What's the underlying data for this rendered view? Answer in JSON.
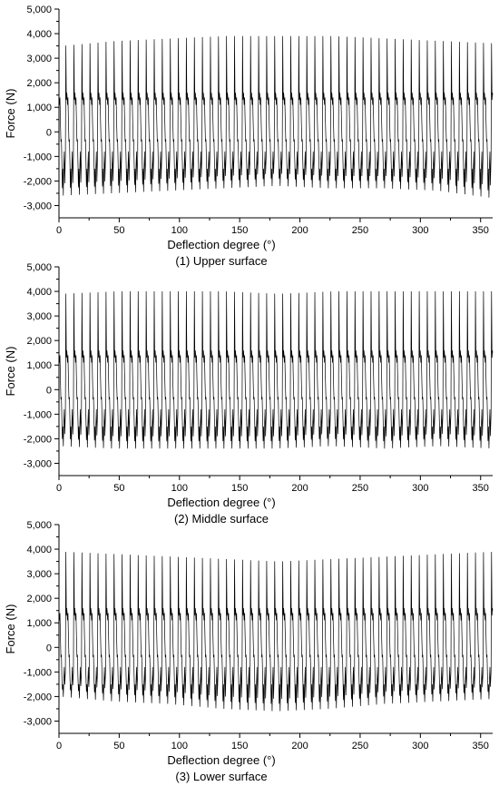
{
  "chart_data": [
    {
      "type": "line",
      "caption": "(1) Upper surface",
      "xlabel": "Deflection degree (°)",
      "ylabel": "Force (N)",
      "xlim": [
        0,
        360
      ],
      "ylim": [
        -3500,
        5000
      ],
      "xticks": [
        0,
        50,
        100,
        150,
        200,
        250,
        300,
        350
      ],
      "yticks": [
        -3000,
        -2000,
        -1000,
        0,
        1000,
        2000,
        3000,
        4000,
        5000
      ],
      "ytick_labels": [
        "-3,000",
        "-2,000",
        "-1,000",
        "0",
        "1,000",
        "2,000",
        "3,000",
        "4,000",
        "5,000"
      ],
      "grid": false,
      "cycles": 54,
      "series": [
        {
          "x": [
            0,
            45,
            90,
            135,
            180,
            225,
            270,
            315,
            360
          ],
          "peak_max": [
            3500,
            3700,
            3800,
            3900,
            3900,
            3900,
            3800,
            3700,
            3600
          ],
          "peak_min": [
            -2600,
            -2500,
            -2400,
            -2300,
            -2200,
            -2300,
            -2300,
            -2400,
            -2700
          ]
        }
      ]
    },
    {
      "type": "line",
      "caption": "(2) Middle surface",
      "xlabel": "Deflection degree (°)",
      "ylabel": "Force (N)",
      "xlim": [
        0,
        360
      ],
      "ylim": [
        -3500,
        5000
      ],
      "xticks": [
        0,
        50,
        100,
        150,
        200,
        250,
        300,
        350
      ],
      "yticks": [
        -3000,
        -2000,
        -1000,
        0,
        1000,
        2000,
        3000,
        4000,
        5000
      ],
      "ytick_labels": [
        "-3,000",
        "-2,000",
        "-1,000",
        "0",
        "1,000",
        "2,000",
        "3,000",
        "4,000",
        "5,000"
      ],
      "grid": false,
      "cycles": 54,
      "series": [
        {
          "x": [
            0,
            45,
            90,
            135,
            180,
            225,
            270,
            315,
            360
          ],
          "peak_max": [
            3900,
            4000,
            4000,
            4000,
            3900,
            4000,
            4000,
            4000,
            4000
          ],
          "peak_min": [
            -2300,
            -2400,
            -2400,
            -2400,
            -2400,
            -2300,
            -2400,
            -2300,
            -2400
          ]
        }
      ]
    },
    {
      "type": "line",
      "caption": "(3) Lower surface",
      "xlabel": "Deflection degree (°)",
      "ylabel": "Force (N)",
      "xlim": [
        0,
        360
      ],
      "ylim": [
        -3500,
        5000
      ],
      "xticks": [
        0,
        50,
        100,
        150,
        200,
        250,
        300,
        350
      ],
      "yticks": [
        -3000,
        -2000,
        -1000,
        0,
        1000,
        2000,
        3000,
        4000,
        5000
      ],
      "ytick_labels": [
        "-3,000",
        "-2,000",
        "-1,000",
        "0",
        "1,000",
        "2,000",
        "3,000",
        "4,000",
        "5,000"
      ],
      "grid": false,
      "cycles": 54,
      "series": [
        {
          "x": [
            0,
            45,
            90,
            135,
            180,
            225,
            270,
            315,
            360
          ],
          "peak_max": [
            3900,
            3800,
            3700,
            3600,
            3500,
            3600,
            3700,
            3800,
            3900
          ],
          "peak_min": [
            -2000,
            -2200,
            -2300,
            -2500,
            -2600,
            -2500,
            -2300,
            -2200,
            -2100
          ]
        }
      ]
    }
  ]
}
